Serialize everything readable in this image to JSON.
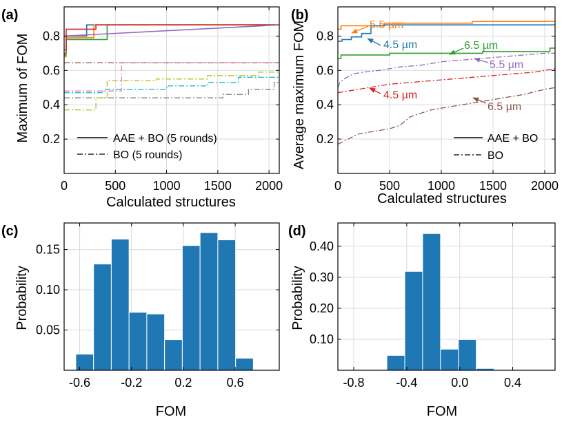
{
  "figure": "Four-panel figure: FOM optimization traces and FOM histograms",
  "chart_data": [
    {
      "panel": "(a)",
      "type": "line",
      "title": "",
      "xlabel": "Calculated structures",
      "ylabel": "Maximum of FOM",
      "xlim": [
        0,
        2100
      ],
      "ylim": [
        0.0,
        0.97
      ],
      "xticks": [
        "0",
        "500",
        "1000",
        "1500",
        "2000"
      ],
      "xtick_values": [
        0,
        500,
        1000,
        1500,
        2000
      ],
      "yticks": [
        "0.2",
        "0.4",
        "0.6",
        "0.8"
      ],
      "ytick_values": [
        0.2,
        0.4,
        0.6,
        0.8
      ],
      "legend": [
        {
          "label": "AAE + BO (5 rounds)",
          "style": "solid"
        },
        {
          "label": "BO (5 rounds)",
          "style": "dashdot"
        }
      ],
      "series": [
        {
          "name": "AAE + BO round 1",
          "style": "solid",
          "color": "#1f77b4",
          "x": [
            0,
            20,
            20,
            220,
            220,
            2100
          ],
          "y": [
            0.69,
            0.69,
            0.8,
            0.8,
            0.865,
            0.865
          ]
        },
        {
          "name": "AAE + BO round 2",
          "style": "solid",
          "color": "#ff7f0e",
          "x": [
            0,
            20,
            20,
            290,
            290,
            2100
          ],
          "y": [
            0.68,
            0.68,
            0.79,
            0.79,
            0.865,
            0.865
          ]
        },
        {
          "name": "AAE + BO round 3",
          "style": "solid",
          "color": "#2ca02c",
          "x": [
            0,
            20,
            20,
            420,
            420,
            2100
          ],
          "y": [
            0.7,
            0.7,
            0.78,
            0.78,
            0.865,
            0.865
          ]
        },
        {
          "name": "AAE + BO round 4",
          "style": "solid",
          "color": "#d62728",
          "x": [
            0,
            20,
            20,
            310,
            310,
            2100
          ],
          "y": [
            0.72,
            0.72,
            0.84,
            0.84,
            0.865,
            0.865
          ]
        },
        {
          "name": "AAE + BO round 5",
          "style": "solid",
          "color": "#9467bd",
          "x": [
            0,
            2100
          ],
          "y": [
            0.8,
            0.865
          ]
        },
        {
          "name": "BO round 1",
          "style": "dashdot",
          "color": "#8c564b",
          "x": [
            0,
            2100
          ],
          "y": [
            0.645,
            0.645
          ]
        },
        {
          "name": "BO round 2",
          "style": "dashdot",
          "color": "#e377c2",
          "x": [
            0,
            560,
            560,
            2100
          ],
          "y": [
            0.48,
            0.48,
            0.645,
            0.645
          ]
        },
        {
          "name": "BO round 3",
          "style": "dashdot",
          "color": "#7f7f7f",
          "x": [
            0,
            1550,
            1550,
            1800,
            1800,
            2050,
            2050,
            2100
          ],
          "y": [
            0.44,
            0.44,
            0.46,
            0.46,
            0.49,
            0.49,
            0.53,
            0.53
          ]
        },
        {
          "name": "BO round 4",
          "style": "dashdot",
          "color": "#bcbd22",
          "x": [
            0,
            310,
            310,
            420,
            420,
            900,
            900,
            1400,
            1400,
            1900,
            1900,
            2100
          ],
          "y": [
            0.37,
            0.37,
            0.44,
            0.44,
            0.54,
            0.54,
            0.55,
            0.55,
            0.57,
            0.57,
            0.59,
            0.59
          ]
        },
        {
          "name": "BO round 5",
          "style": "dashdot",
          "color": "#17becf",
          "x": [
            0,
            390,
            390,
            1000,
            1000,
            1400,
            1400,
            1700,
            1700,
            2100
          ],
          "y": [
            0.47,
            0.47,
            0.49,
            0.49,
            0.51,
            0.51,
            0.53,
            0.53,
            0.56,
            0.56
          ]
        }
      ]
    },
    {
      "panel": "(b)",
      "type": "line",
      "title": "",
      "xlabel": "Calculated structures",
      "ylabel": "Average maximum FOM",
      "xlim": [
        0,
        2100
      ],
      "ylim": [
        0.0,
        0.97
      ],
      "xticks": [
        "0",
        "500",
        "1000",
        "1500",
        "2000"
      ],
      "xtick_values": [
        0,
        500,
        1000,
        1500,
        2000
      ],
      "yticks": [
        "0.2",
        "0.4",
        "0.6",
        "0.8"
      ],
      "ytick_values": [
        0.2,
        0.4,
        0.6,
        0.8
      ],
      "legend": [
        {
          "label": "AAE + BO",
          "style": "solid"
        },
        {
          "label": "BO",
          "style": "dashdot"
        }
      ],
      "annotations": [
        "5.5 µm",
        "4.5 µm",
        "6.5 µm",
        "5.5 µm",
        "4.5 µm",
        "6.5 µm"
      ],
      "series": [
        {
          "name": "AAE + BO 5.5 µm",
          "style": "solid",
          "color": "#ff7f0e",
          "x": [
            0,
            30,
            30,
            450,
            450,
            1300,
            1300,
            2100
          ],
          "y": [
            0.84,
            0.84,
            0.86,
            0.86,
            0.875,
            0.875,
            0.885,
            0.885
          ]
        },
        {
          "name": "AAE + BO 4.5 µm",
          "style": "solid",
          "color": "#1f77b4",
          "x": [
            0,
            40,
            40,
            130,
            130,
            230,
            230,
            320,
            320,
            450,
            450,
            2100
          ],
          "y": [
            0.77,
            0.77,
            0.78,
            0.78,
            0.795,
            0.795,
            0.815,
            0.815,
            0.86,
            0.86,
            0.865,
            0.865
          ]
        },
        {
          "name": "AAE + BO 6.5 µm",
          "style": "solid",
          "color": "#2ca02c",
          "x": [
            0,
            30,
            30,
            500,
            500,
            1400,
            1400,
            2050,
            2050,
            2100
          ],
          "y": [
            0.67,
            0.67,
            0.69,
            0.69,
            0.7,
            0.7,
            0.71,
            0.71,
            0.73,
            0.73
          ]
        },
        {
          "name": "BO 5.5 µm",
          "style": "dashdot",
          "color": "#9467bd",
          "x": [
            0,
            20,
            60,
            150,
            250,
            400,
            600,
            800,
            1000,
            1200,
            1400,
            1600,
            1800,
            2000,
            2100
          ],
          "y": [
            0.5,
            0.53,
            0.55,
            0.58,
            0.59,
            0.6,
            0.62,
            0.63,
            0.65,
            0.66,
            0.67,
            0.68,
            0.69,
            0.7,
            0.7
          ]
        },
        {
          "name": "BO 4.5 µm",
          "style": "dashdot",
          "color": "#d62728",
          "x": [
            0,
            100,
            200,
            300,
            400,
            500,
            700,
            900,
            1100,
            1300,
            1500,
            1700,
            1900,
            2100
          ],
          "y": [
            0.47,
            0.48,
            0.49,
            0.5,
            0.51,
            0.52,
            0.53,
            0.54,
            0.55,
            0.56,
            0.57,
            0.58,
            0.59,
            0.61
          ]
        },
        {
          "name": "BO 6.5 µm",
          "style": "dashdot",
          "color": "#8c564b",
          "x": [
            0,
            100,
            200,
            300,
            400,
            500,
            600,
            700,
            800,
            900,
            1000,
            1200,
            1400,
            1600,
            1800,
            2000,
            2100
          ],
          "y": [
            0.17,
            0.2,
            0.23,
            0.24,
            0.25,
            0.26,
            0.28,
            0.33,
            0.35,
            0.37,
            0.38,
            0.4,
            0.42,
            0.44,
            0.46,
            0.49,
            0.5
          ]
        }
      ]
    },
    {
      "panel": "(c)",
      "type": "bar",
      "title": "",
      "xlabel": "FOM",
      "ylabel": "Probability",
      "xlim": [
        -0.72,
        0.94
      ],
      "ylim": [
        0,
        0.183
      ],
      "xticks": [
        "-0.6",
        "-0.2",
        "0.2",
        "0.6"
      ],
      "xtick_values": [
        -0.6,
        -0.2,
        0.2,
        0.6
      ],
      "yticks": [
        "0.05",
        "0.10",
        "0.15"
      ],
      "ytick_values": [
        0.05,
        0.1,
        0.15
      ],
      "bar_color": "#1f77b4",
      "bin_edges": [
        -0.63,
        -0.493,
        -0.356,
        -0.219,
        -0.082,
        0.055,
        0.192,
        0.329,
        0.466,
        0.603,
        0.74,
        0.877
      ],
      "values": [
        0.02,
        0.132,
        0.163,
        0.072,
        0.07,
        0.038,
        0.155,
        0.171,
        0.162,
        0.015,
        0
      ]
    },
    {
      "panel": "(d)",
      "type": "bar",
      "title": "",
      "xlabel": "FOM",
      "ylabel": "Probability",
      "xlim": [
        -0.92,
        0.72
      ],
      "ylim": [
        0,
        0.475
      ],
      "xticks": [
        "-0.8",
        "-0.4",
        "0.0",
        "0.4"
      ],
      "xtick_values": [
        -0.8,
        -0.4,
        0.0,
        0.4
      ],
      "yticks": [
        "0.10",
        "0.20",
        "0.30",
        "0.40"
      ],
      "ytick_values": [
        0.1,
        0.2,
        0.3,
        0.4
      ],
      "bar_color": "#1f77b4",
      "bin_edges": [
        -0.82,
        -0.685,
        -0.55,
        -0.415,
        -0.28,
        -0.145,
        -0.01,
        0.125,
        0.26,
        0.395,
        0.53,
        0.665
      ],
      "values": [
        0.0,
        0.002,
        0.048,
        0.319,
        0.441,
        0.068,
        0.099,
        0.006,
        0.002,
        0.001,
        0.0
      ]
    }
  ]
}
